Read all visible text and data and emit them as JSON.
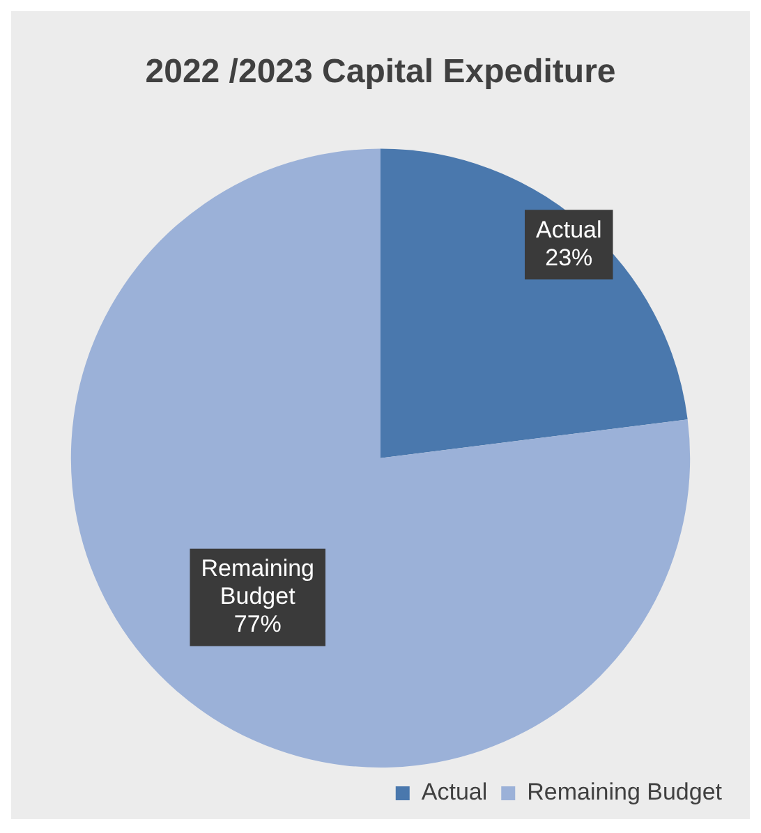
{
  "chart_data": {
    "type": "pie",
    "title": "2022 /2023 Capital Expediture",
    "categories": [
      "Actual",
      "Remaining Budget"
    ],
    "values": [
      23,
      77
    ],
    "value_labels": [
      "23%",
      "77%"
    ],
    "colors": [
      "#4a78ad",
      "#9bb1d8"
    ],
    "legend": "bottom right"
  }
}
